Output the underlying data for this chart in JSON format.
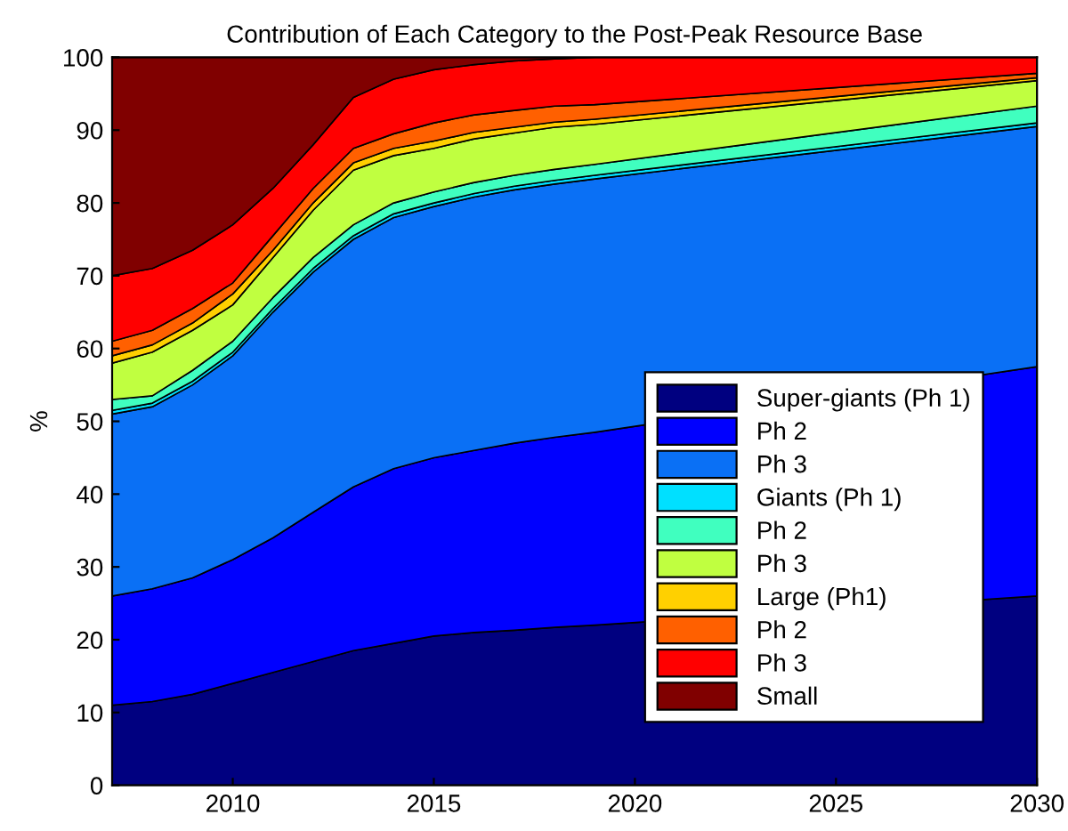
{
  "chart_data": {
    "type": "area",
    "stacked": true,
    "title": "Contribution of Each Category to the Post-Peak Resource Base",
    "ylabel": "%",
    "x": [
      2007,
      2008,
      2009,
      2010,
      2011,
      2012,
      2013,
      2014,
      2015,
      2016,
      2017,
      2018,
      2019,
      2030
    ],
    "series": [
      {
        "name": "Super-giants (Ph 1)",
        "color": "#000080",
        "values": [
          11,
          11.5,
          12.5,
          14,
          15.5,
          17,
          18.5,
          19.5,
          20.5,
          21,
          21.3,
          21.7,
          22,
          26
        ]
      },
      {
        "name": "Ph 2",
        "color": "#0000ff",
        "values": [
          15,
          15.5,
          16,
          17,
          18.5,
          20.5,
          22.5,
          24,
          24.5,
          25,
          25.7,
          26.1,
          26.5,
          31.5
        ]
      },
      {
        "name": "Ph 3",
        "color": "#0a70f5",
        "values": [
          25,
          25,
          26.5,
          28,
          31,
          33,
          34,
          34.5,
          34.5,
          34.8,
          34.8,
          34.8,
          34.8,
          33
        ]
      },
      {
        "name": "Giants (Ph 1)",
        "color": "#00e0ff",
        "values": [
          0.5,
          0.5,
          0.5,
          0.5,
          0.5,
          0.5,
          0.5,
          0.5,
          0.5,
          0.5,
          0.5,
          0.5,
          0.5,
          0.5
        ]
      },
      {
        "name": "Ph 2",
        "color": "#40ffbf",
        "values": [
          1.5,
          1,
          1.5,
          1.5,
          1.5,
          1.5,
          1.5,
          1.5,
          1.5,
          1.5,
          1.5,
          1.5,
          1.5,
          2.3
        ]
      },
      {
        "name": "Ph 3",
        "color": "#c0ff40",
        "values": [
          5,
          6,
          5.5,
          5,
          5.5,
          6.5,
          7.5,
          6.5,
          6,
          6,
          5.8,
          5.8,
          5.5,
          3.5
        ]
      },
      {
        "name": "Large (Ph1)",
        "color": "#ffd000",
        "values": [
          1,
          1,
          1,
          1.5,
          1,
          1,
          1,
          1,
          1,
          0.9,
          0.8,
          0.7,
          0.7,
          0.4
        ]
      },
      {
        "name": "Ph 2",
        "color": "#ff6000",
        "values": [
          2,
          2,
          2,
          1.5,
          2,
          2,
          2,
          2,
          2.5,
          2.4,
          2.3,
          2.2,
          2,
          0.6
        ]
      },
      {
        "name": "Ph 3",
        "color": "#ff0000",
        "values": [
          9,
          8.5,
          8,
          8,
          6.5,
          6,
          7,
          7.5,
          7.3,
          6.9,
          6.8,
          6.5,
          6.5,
          2.2
        ]
      },
      {
        "name": "Small",
        "color": "#800000",
        "values": [
          30,
          29,
          26.5,
          23,
          18,
          12,
          5.5,
          3,
          1.7,
          1,
          0.5,
          0.2,
          0,
          0
        ]
      }
    ],
    "xlim": [
      2007,
      2030
    ],
    "xticks": [
      2010,
      2015,
      2020,
      2025,
      2030
    ],
    "ylim": [
      0,
      100
    ],
    "yticks": [
      0,
      10,
      20,
      30,
      40,
      50,
      60,
      70,
      80,
      90,
      100
    ],
    "grid": false,
    "legend": "bottom right"
  }
}
